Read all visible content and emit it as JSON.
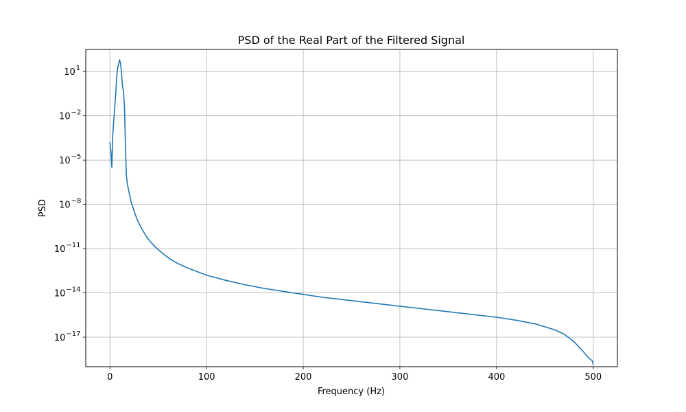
{
  "chart_data": {
    "type": "line",
    "title": "PSD of the Real Part of the Filtered Signal",
    "xlabel": "Frequency (Hz)",
    "ylabel": "PSD",
    "xlim": [
      -25,
      525
    ],
    "ylim_log10": [
      -19.0,
      2.5
    ],
    "y_scale": "log",
    "grid": true,
    "line_color": "#1f77b4",
    "grid_color": "#b0b0b0",
    "x_ticks": [
      {
        "value": 0,
        "label": "0"
      },
      {
        "value": 100,
        "label": "100"
      },
      {
        "value": 200,
        "label": "200"
      },
      {
        "value": 300,
        "label": "300"
      },
      {
        "value": 400,
        "label": "400"
      },
      {
        "value": 500,
        "label": "500"
      }
    ],
    "y_ticks": [
      {
        "exp": 1,
        "base": "10",
        "sup": "1"
      },
      {
        "exp": -2,
        "base": "10",
        "sup": "−2"
      },
      {
        "exp": -5,
        "base": "10",
        "sup": "−5"
      },
      {
        "exp": -8,
        "base": "10",
        "sup": "−8"
      },
      {
        "exp": -11,
        "base": "10",
        "sup": "−11"
      },
      {
        "exp": -14,
        "base": "10",
        "sup": "−14"
      },
      {
        "exp": -17,
        "base": "10",
        "sup": "−17"
      }
    ],
    "series": [
      {
        "x": [
          0,
          1,
          2,
          3,
          4,
          5,
          6,
          7,
          8,
          9,
          10,
          11,
          12,
          13,
          14,
          15,
          16,
          17,
          18,
          20,
          22,
          25,
          28,
          32,
          37,
          42,
          48,
          55,
          62,
          70,
          80,
          90,
          100,
          120,
          140,
          160,
          180,
          200,
          220,
          240,
          260,
          280,
          300,
          320,
          340,
          360,
          380,
          400,
          420,
          440,
          460,
          470,
          480,
          490,
          495,
          499,
          500
        ],
        "y_log10": [
          -3.8,
          -4.4,
          -5.5,
          -3.2,
          -2.3,
          -1.4,
          -0.5,
          0.6,
          1.25,
          1.5,
          1.8,
          1.55,
          0.9,
          0.0,
          -0.3,
          -1.3,
          -3.8,
          -6.0,
          -6.6,
          -7.25,
          -7.85,
          -8.45,
          -9.0,
          -9.55,
          -10.1,
          -10.55,
          -10.95,
          -11.35,
          -11.7,
          -12.0,
          -12.3,
          -12.55,
          -12.8,
          -13.15,
          -13.45,
          -13.7,
          -13.9,
          -14.1,
          -14.3,
          -14.45,
          -14.6,
          -14.75,
          -14.9,
          -15.05,
          -15.2,
          -15.35,
          -15.5,
          -15.65,
          -15.85,
          -16.1,
          -16.5,
          -16.8,
          -17.3,
          -18.0,
          -18.4,
          -18.6,
          -18.85
        ]
      }
    ]
  }
}
